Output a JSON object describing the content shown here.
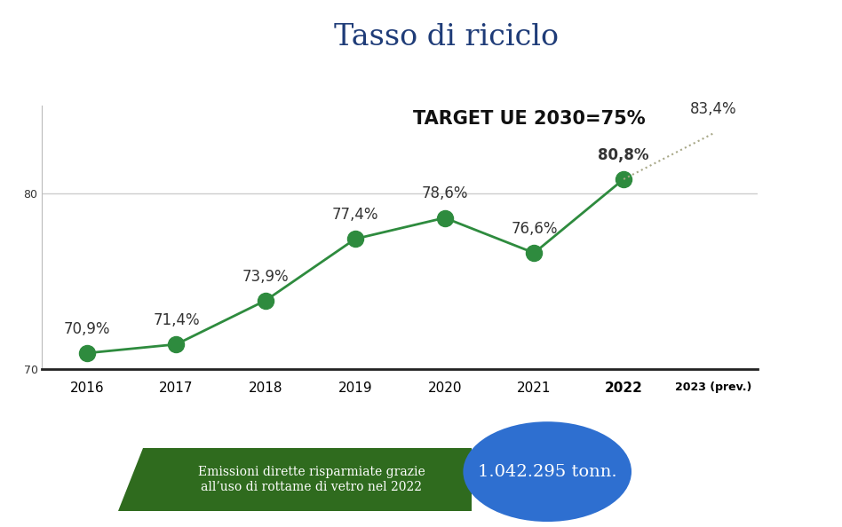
{
  "chart_data": {
    "type": "line",
    "title": "Tasso di riciclo",
    "annotations": [
      "TARGET UE 2030=75%"
    ],
    "callout": {
      "text": "Emissioni dirette risparmiate grazie\nall’uso di rottame di vetro nel 2022",
      "value": "1.042.295 tonn."
    },
    "categories": [
      "2016",
      "2017",
      "2018",
      "2019",
      "2020",
      "2021",
      "2022",
      "2023 (prev.)"
    ],
    "series": [
      {
        "color": "#2e8b3e",
        "marker": "circle",
        "line_style": "solid",
        "values": [
          70.9,
          71.4,
          73.9,
          77.4,
          78.6,
          76.6,
          80.8,
          null
        ],
        "value_labels": [
          "70,9%",
          "71,4%",
          "73,9%",
          "77,4%",
          "78,6%",
          "76,6%",
          "80,8%",
          null
        ]
      },
      {
        "color": "#a8a888",
        "marker": "none",
        "line_style": "dotted",
        "values": [
          null,
          null,
          null,
          null,
          null,
          null,
          80.8,
          83.4
        ],
        "value_labels": [
          null,
          null,
          null,
          null,
          null,
          null,
          null,
          "83,4%"
        ]
      }
    ],
    "ylim": [
      70,
      85
    ],
    "yticks": [
      70,
      80
    ],
    "grid": true,
    "data_labels": true
  }
}
